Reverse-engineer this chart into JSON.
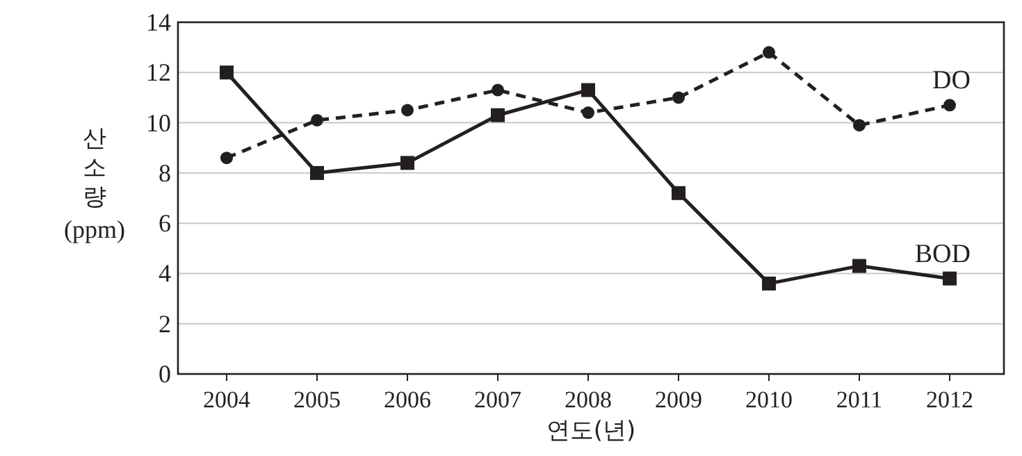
{
  "chart_data": {
    "type": "line",
    "xlabel": "연도(년)",
    "ylabel": "산소량(ppm)",
    "categories": [
      "2004",
      "2005",
      "2006",
      "2007",
      "2008",
      "2009",
      "2010",
      "2011",
      "2012"
    ],
    "series": [
      {
        "name": "BOD",
        "color": "#231f20",
        "line_style": "solid",
        "marker": "square",
        "values": [
          12.0,
          8.0,
          8.4,
          10.3,
          11.3,
          7.2,
          3.6,
          4.3,
          3.8
        ]
      },
      {
        "name": "DO",
        "color": "#231f20",
        "line_style": "dashed",
        "marker": "circle",
        "values": [
          8.6,
          10.1,
          10.5,
          11.3,
          10.4,
          11.0,
          12.8,
          9.9,
          10.7
        ]
      }
    ],
    "ylim": [
      0,
      14
    ],
    "yticks": [
      0,
      2,
      4,
      6,
      8,
      10,
      12,
      14
    ],
    "grid": "y",
    "legend": false
  }
}
